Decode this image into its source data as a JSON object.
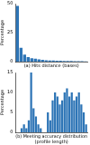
{
  "chart_data": [
    {
      "type": "bar",
      "x_label": "(a) Hits distance (bases)",
      "y_label": "Percentage",
      "categories": [
        null,
        null,
        null,
        null,
        null,
        null,
        null,
        null,
        null,
        null,
        null,
        null,
        null,
        null,
        null,
        null,
        null,
        null,
        null,
        null
      ],
      "values": [
        48,
        12,
        6,
        4,
        3,
        2.5,
        2,
        1.5,
        1.2,
        1,
        1,
        0.8,
        0.7,
        0.6,
        0.5,
        0.5,
        0.4,
        0.3,
        0.3,
        0.2
      ],
      "color": "#2e75b6",
      "ylim": [
        0,
        50
      ],
      "yticks": [
        0,
        25,
        50
      ],
      "grid": false,
      "tick_labels": "y"
    },
    {
      "type": "bar",
      "x_label": "(b) Meeting accuracy distribution (profile length)",
      "y_label": "Percentage",
      "categories": [
        null,
        null,
        null,
        null,
        null,
        null,
        null,
        null,
        null,
        null,
        null,
        null,
        null,
        null,
        null,
        null,
        null,
        null,
        null,
        null,
        null,
        null,
        null,
        null,
        null,
        null,
        null,
        null,
        null,
        null
      ],
      "values": [
        0,
        0,
        1,
        2,
        1,
        3,
        15,
        6,
        4,
        2,
        1,
        0,
        0,
        5,
        3,
        8,
        10,
        9,
        7,
        8,
        10,
        11,
        9,
        10,
        8,
        9,
        10,
        7,
        5,
        2
      ],
      "color": "#2e75b6",
      "ylim": [
        0,
        15
      ],
      "yticks": [
        0,
        5,
        10,
        15
      ],
      "grid": false,
      "tick_labels": "y"
    }
  ]
}
